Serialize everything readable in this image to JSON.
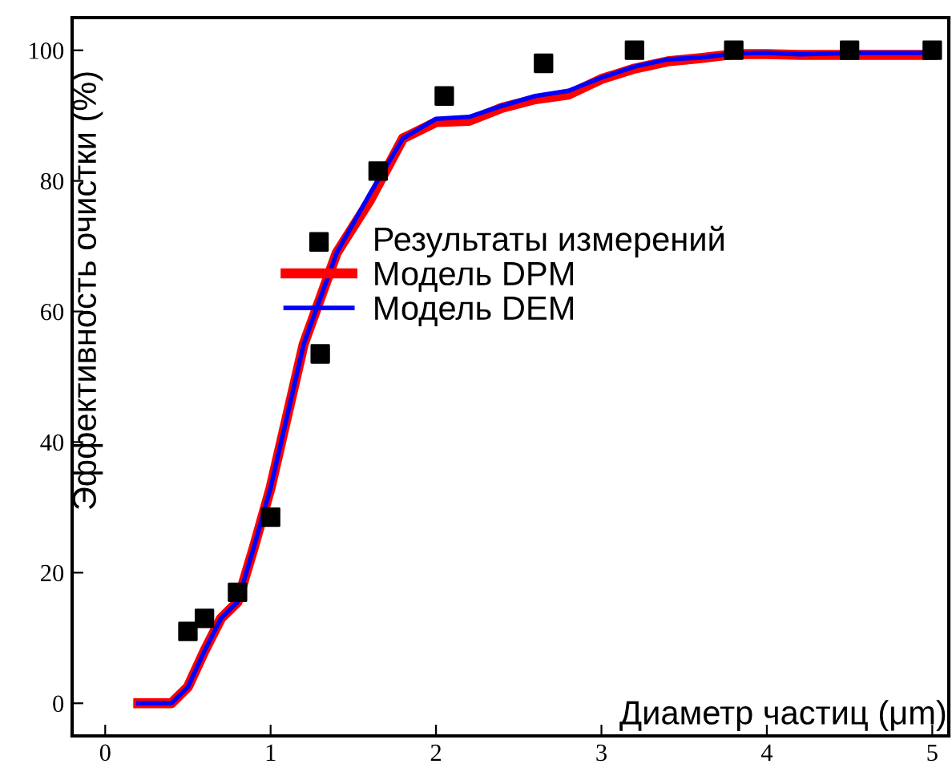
{
  "chart_data": {
    "type": "line",
    "xlabel": "Диаметр частиц (μm)",
    "ylabel": "Эффективность очистки (%)",
    "xlim": [
      -0.2,
      5.1
    ],
    "ylim": [
      -5,
      105
    ],
    "xticks": [
      0,
      1,
      2,
      3,
      4,
      5
    ],
    "yticks": [
      0,
      20,
      40,
      60,
      80,
      100
    ],
    "grid": false,
    "legend": "right",
    "series": [
      {
        "name": "Результаты измерений",
        "type": "scatter",
        "marker": "square",
        "color": "#000000",
        "x": [
          0.5,
          0.6,
          0.8,
          1.0,
          1.3,
          1.65,
          2.05,
          2.65,
          3.2,
          3.8,
          4.5,
          5.0
        ],
        "values": [
          11,
          13,
          17,
          28.5,
          53.5,
          81.5,
          93,
          98,
          100,
          100,
          100,
          100
        ]
      },
      {
        "name": "Модель DPM",
        "marker": "none",
        "color": "#ff0000",
        "x": [
          0.2,
          0.4,
          0.5,
          0.6,
          0.7,
          0.8,
          0.9,
          1.0,
          1.1,
          1.2,
          1.4,
          1.6,
          1.8,
          2.0,
          2.2,
          2.4,
          2.6,
          2.8,
          3.0,
          3.2,
          3.4,
          3.6,
          3.8,
          4.0,
          4.2,
          4.4,
          4.6,
          5.0
        ],
        "values": [
          0,
          0,
          2.5,
          8,
          13,
          15.5,
          24,
          33,
          44,
          55,
          69,
          77,
          86.5,
          89,
          89.2,
          91.2,
          92.5,
          93.2,
          95.6,
          97.2,
          98.3,
          98.8,
          99.4,
          99.4,
          99.3,
          99.3,
          99.3,
          99.3
        ]
      },
      {
        "name": "Модель DEM",
        "marker": "none",
        "color": "#0000ff",
        "x": [
          0.2,
          0.4,
          0.5,
          0.6,
          0.7,
          0.8,
          0.9,
          1.0,
          1.1,
          1.2,
          1.4,
          1.6,
          1.8,
          2.0,
          2.2,
          2.4,
          2.6,
          2.8,
          3.0,
          3.2,
          3.4,
          3.6,
          3.8,
          4.0,
          4.2,
          4.4,
          4.6,
          5.0
        ],
        "values": [
          0,
          0,
          2.5,
          8,
          13,
          15.5,
          24,
          33,
          44,
          55,
          69,
          78,
          86.5,
          89.5,
          89.8,
          91.5,
          93,
          93.8,
          95.8,
          97.5,
          98.6,
          98.9,
          99.5,
          99.6,
          99.4,
          99.5,
          99.6,
          99.6
        ]
      }
    ]
  }
}
